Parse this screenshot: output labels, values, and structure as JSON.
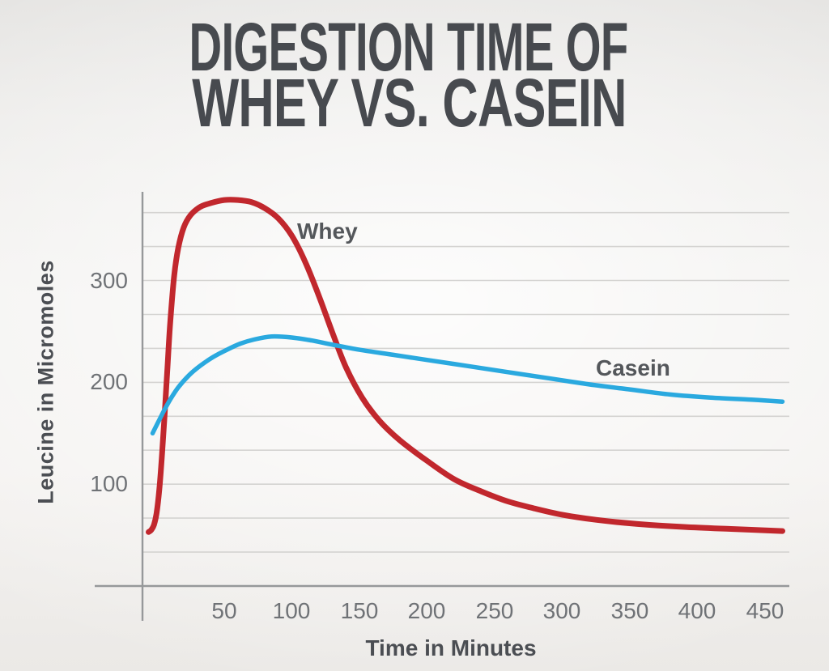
{
  "title": {
    "line1": "DIGESTION TIME OF",
    "line2": "WHEY VS. CASEIN",
    "color": "#474a4f"
  },
  "chart_data": {
    "type": "line",
    "title": "Digestion Time of Whey vs. Casein",
    "xlabel": "Time in Minutes",
    "ylabel": "Leucine in Micromoles",
    "xlim": [
      -10,
      470
    ],
    "ylim": [
      0,
      392
    ],
    "x_ticks": [
      50,
      100,
      150,
      200,
      250,
      300,
      350,
      400,
      450
    ],
    "y_ticks": [
      100,
      200,
      300
    ],
    "grid": {
      "step": 33.33,
      "lines": 11,
      "orientation": "horizontal"
    },
    "legend_position": "inline-labels",
    "series": [
      {
        "name": "Whey",
        "color": "#c1272d",
        "stroke_width": 7,
        "points": [
          [
            -6,
            53
          ],
          [
            -4,
            55
          ],
          [
            -2,
            60
          ],
          [
            0,
            72
          ],
          [
            2,
            95
          ],
          [
            4,
            130
          ],
          [
            6,
            170
          ],
          [
            8,
            215
          ],
          [
            10,
            258
          ],
          [
            13,
            305
          ],
          [
            16,
            332
          ],
          [
            20,
            352
          ],
          [
            25,
            364
          ],
          [
            32,
            372
          ],
          [
            40,
            376
          ],
          [
            50,
            379
          ],
          [
            60,
            379
          ],
          [
            70,
            377
          ],
          [
            80,
            371
          ],
          [
            90,
            361
          ],
          [
            100,
            344
          ],
          [
            110,
            318
          ],
          [
            120,
            285
          ],
          [
            130,
            249
          ],
          [
            140,
            215
          ],
          [
            152,
            185
          ],
          [
            165,
            162
          ],
          [
            180,
            143
          ],
          [
            200,
            123
          ],
          [
            220,
            105
          ],
          [
            240,
            93
          ],
          [
            260,
            83
          ],
          [
            280,
            76
          ],
          [
            300,
            70
          ],
          [
            325,
            65
          ],
          [
            355,
            61
          ],
          [
            390,
            58
          ],
          [
            425,
            56
          ],
          [
            463,
            54
          ]
        ]
      },
      {
        "name": "Casein",
        "color": "#2aa9df",
        "stroke_width": 5.5,
        "points": [
          [
            -3,
            150
          ],
          [
            0,
            158
          ],
          [
            5,
            171
          ],
          [
            10,
            183
          ],
          [
            16,
            195
          ],
          [
            24,
            207
          ],
          [
            32,
            216
          ],
          [
            42,
            225
          ],
          [
            52,
            232
          ],
          [
            62,
            238
          ],
          [
            72,
            242
          ],
          [
            85,
            245
          ],
          [
            100,
            244
          ],
          [
            115,
            241
          ],
          [
            130,
            237
          ],
          [
            150,
            232
          ],
          [
            175,
            227
          ],
          [
            200,
            222
          ],
          [
            230,
            216
          ],
          [
            260,
            210
          ],
          [
            290,
            204
          ],
          [
            320,
            198
          ],
          [
            350,
            193
          ],
          [
            380,
            188
          ],
          [
            410,
            185
          ],
          [
            440,
            183
          ],
          [
            463,
            181
          ]
        ]
      }
    ],
    "peak_values": {
      "Whey": 379,
      "Casein": 245
    },
    "end_values": {
      "Whey": 54,
      "Casein": 181
    }
  },
  "style": {
    "grid_color": "#d4d3d1",
    "axis_color": "#96989a",
    "tick_text_color": "#6f7276",
    "axis_title_color": "#4b4e53",
    "series_label_color": "#54575b",
    "background": "#f0efed"
  }
}
